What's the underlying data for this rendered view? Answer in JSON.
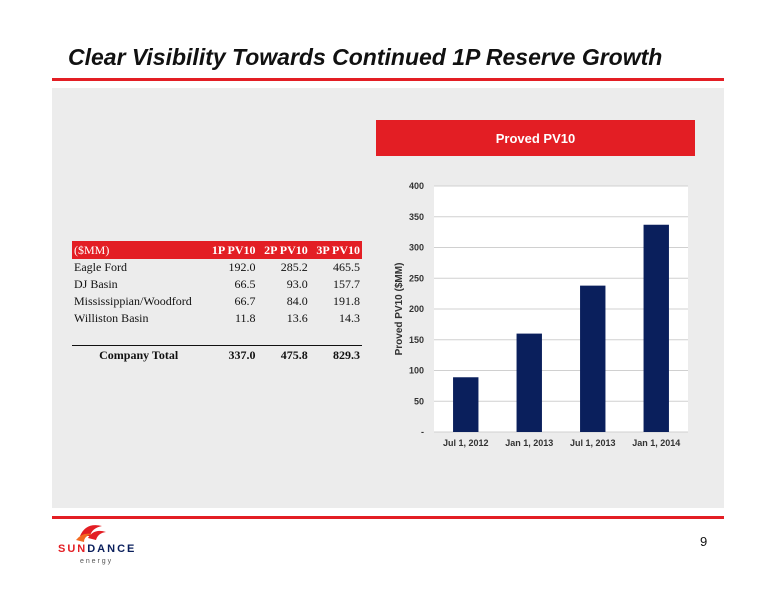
{
  "slide": {
    "title": "Clear Visibility Towards Continued 1P Reserve Growth",
    "page_number": "9",
    "accent_color": "#e31e24",
    "panel_color": "#ececec"
  },
  "table": {
    "headers": [
      "($MM)",
      "1P PV10",
      "2P PV10",
      "3P PV10"
    ],
    "rows": [
      {
        "name": "Eagle Ford",
        "p1": "192.0",
        "p2": "285.2",
        "p3": "465.5"
      },
      {
        "name": "DJ Basin",
        "p1": "66.5",
        "p2": "93.0",
        "p3": "157.7"
      },
      {
        "name": "Mississippian/Woodford",
        "p1": "66.7",
        "p2": "84.0",
        "p3": "191.8"
      },
      {
        "name": "Williston Basin",
        "p1": "11.8",
        "p2": "13.6",
        "p3": "14.3"
      }
    ],
    "total": {
      "name": "Company Total",
      "p1": "337.0",
      "p2": "475.8",
      "p3": "829.3"
    }
  },
  "chart_header": "Proved PV10",
  "chart_data": {
    "type": "bar",
    "title": "Proved PV10",
    "categories": [
      "Jul 1, 2012",
      "Jan 1, 2013",
      "Jul 1, 2013",
      "Jan 1, 2014"
    ],
    "values": [
      89,
      160,
      238,
      337
    ],
    "xlabel": "",
    "ylabel": "Proved PV10 ($MM)",
    "ylim": [
      0,
      400
    ],
    "yticks": [
      0,
      50,
      100,
      150,
      200,
      250,
      300,
      350,
      400
    ],
    "ytick_labels": [
      "-",
      "50",
      "100",
      "150",
      "200",
      "250",
      "300",
      "350",
      "400"
    ],
    "bar_color": "#0a1f5c",
    "grid": true,
    "legend": "none"
  },
  "logo": {
    "brand": "SUNDANCE",
    "subtext": "e n e r g y"
  }
}
